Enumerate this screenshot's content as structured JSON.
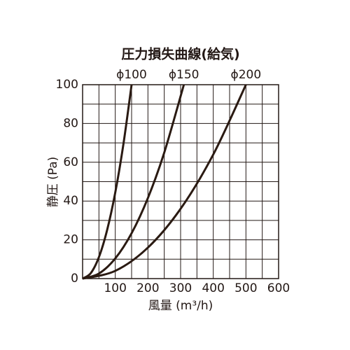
{
  "chart_data": {
    "type": "line",
    "title": "圧力損失曲線(給気)",
    "x_label": "風量 (m³/h)",
    "y_label": "静圧 (Pa)",
    "xlim": [
      0,
      600
    ],
    "xticks": [
      100,
      200,
      300,
      400,
      500,
      600
    ],
    "x_minor_ticks": [
      50,
      150,
      250,
      350,
      450,
      550
    ],
    "ylim": [
      0,
      100
    ],
    "yticks": [
      0,
      20,
      40,
      60,
      80,
      100
    ],
    "y_minor_ticks": [
      10,
      30,
      50,
      70,
      90
    ],
    "grid": true,
    "series": [
      {
        "name": "ϕ100",
        "color": "#2a1a12",
        "x": [
          0,
          25,
          50,
          75,
          100,
          125,
          150
        ],
        "values": [
          0,
          2.8,
          11.1,
          25,
          44.4,
          69.4,
          100
        ]
      },
      {
        "name": "ϕ150",
        "color": "#2a1a12",
        "x": [
          0,
          50,
          100,
          150,
          200,
          250,
          310
        ],
        "values": [
          0,
          2.6,
          10.4,
          23.4,
          41.6,
          65,
          100
        ]
      },
      {
        "name": "ϕ200",
        "color": "#2a1a12",
        "x": [
          0,
          100,
          200,
          300,
          400,
          500
        ],
        "values": [
          0,
          4,
          16,
          36,
          64,
          100
        ]
      }
    ]
  }
}
